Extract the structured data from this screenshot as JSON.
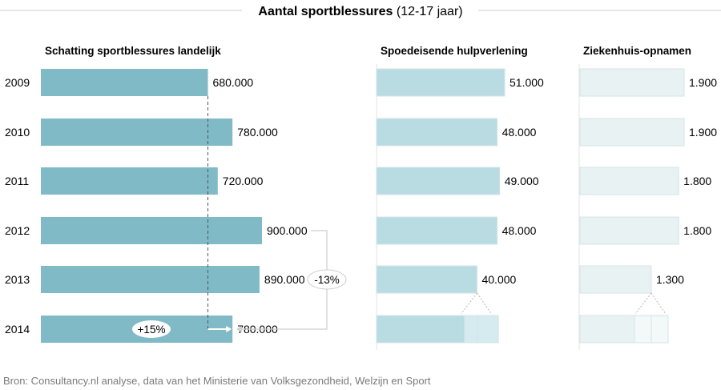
{
  "title": {
    "bold": "Aantal sportblessures",
    "rest": " (12-17 jaar)"
  },
  "source": "Bron: Consultancy.nl analyse, data van het Ministerie van Volksgezondheid, Welzijn en Sport",
  "years": [
    "2009",
    "2010",
    "2011",
    "2012",
    "2013",
    "2014"
  ],
  "colors": {
    "landelijk": "#7fbac6",
    "spoed": "#b9dbe2",
    "spoed_light": "#d6ebef",
    "zh": "#e9f2f3",
    "zh_light": "#f3f8f9",
    "bar_border": "#d3e4e7",
    "guide": "#555555",
    "callout_border": "#cfcfcf"
  },
  "chart_data": [
    {
      "type": "bar",
      "title": "Schatting sportblessures landelijk",
      "categories": [
        "2009",
        "2010",
        "2011",
        "2012",
        "2013",
        "2014"
      ],
      "values": [
        680000,
        780000,
        720000,
        900000,
        890000,
        780000
      ],
      "labels": [
        "680.000",
        "780.000",
        "720.000",
        "900.000",
        "890.000",
        "780.000"
      ],
      "annotations": [
        {
          "text": "+15%",
          "from": "2009",
          "to": "2014"
        },
        {
          "text": "-13%",
          "from": "2012",
          "to": "2014"
        }
      ]
    },
    {
      "type": "bar",
      "title": "Spoedeisende hulpverlening",
      "categories": [
        "2009",
        "2010",
        "2011",
        "2012",
        "2013",
        "2014"
      ],
      "values": [
        51000,
        48000,
        49000,
        48000,
        40000,
        null
      ],
      "labels": [
        "51.000",
        "48.000",
        "49.000",
        "48.000",
        "40.000",
        ""
      ],
      "estimate_2014_segments": [
        40000,
        7000,
        11000
      ]
    },
    {
      "type": "bar",
      "title": "Ziekenhuis-opnamen",
      "categories": [
        "2009",
        "2010",
        "2011",
        "2012",
        "2013",
        "2014"
      ],
      "values": [
        1900,
        1900,
        1800,
        1800,
        1300,
        null
      ],
      "labels": [
        "1.900",
        "1.900",
        "1.800",
        "1.800",
        "1.300",
        ""
      ],
      "estimate_2014_segments": [
        1300,
        400,
        400
      ]
    }
  ]
}
